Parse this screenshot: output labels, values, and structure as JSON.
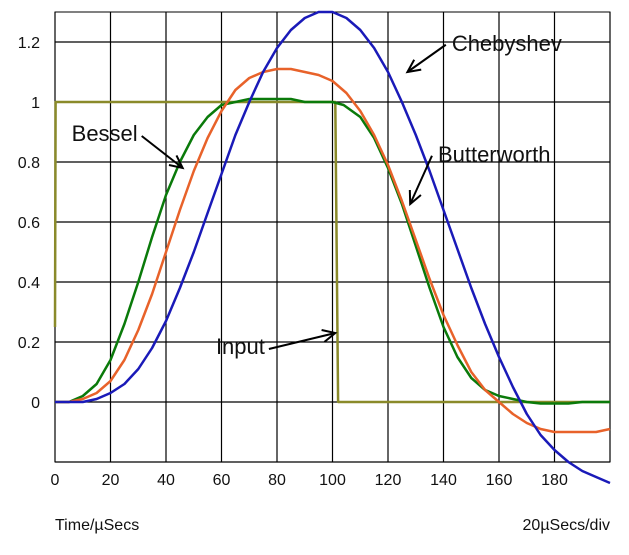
{
  "chart_data": {
    "type": "line",
    "title": "",
    "xlabel": "Time/µSecs",
    "ylabel": "",
    "scale_label": "20µSecs/div",
    "xlim": [
      0,
      200
    ],
    "ylim": [
      -0.2,
      1.3
    ],
    "grid": true,
    "legend": "none",
    "x_ticks": [
      0,
      20,
      40,
      60,
      80,
      100,
      120,
      140,
      160,
      180
    ],
    "y_ticks": [
      0,
      0.2,
      0.4,
      0.6,
      0.8,
      1,
      1.2
    ],
    "x_tick_labels": [
      "0",
      "20",
      "40",
      "60",
      "80",
      "100",
      "120",
      "140",
      "160",
      "180"
    ],
    "y_tick_labels": [
      "0",
      "0.2",
      "0.4",
      "0.6",
      "0.8",
      "1",
      "1.2"
    ],
    "series": [
      {
        "name": "Input",
        "color": "#8a8a2a",
        "x": [
          0,
          0.2,
          0.4,
          100,
          101,
          102,
          200
        ],
        "y": [
          0.25,
          1.0,
          1.0,
          1.0,
          1.0,
          0.0,
          0.0
        ]
      },
      {
        "name": "Bessel",
        "color": "#0a7a0a",
        "x": [
          0,
          5,
          10,
          15,
          20,
          25,
          30,
          35,
          40,
          45,
          50,
          55,
          60,
          65,
          70,
          75,
          80,
          85,
          90,
          95,
          100,
          104,
          110,
          115,
          120,
          125,
          130,
          135,
          140,
          145,
          150,
          155,
          160,
          165,
          170,
          175,
          180,
          185,
          190,
          195,
          200
        ],
        "y": [
          0,
          0,
          0.02,
          0.06,
          0.14,
          0.26,
          0.4,
          0.55,
          0.69,
          0.8,
          0.89,
          0.95,
          0.99,
          1.0,
          1.01,
          1.01,
          1.01,
          1.01,
          1.0,
          1.0,
          1.0,
          0.99,
          0.95,
          0.88,
          0.78,
          0.66,
          0.52,
          0.38,
          0.25,
          0.15,
          0.08,
          0.04,
          0.02,
          0.01,
          0.0,
          -0.005,
          -0.005,
          -0.005,
          0.0,
          0.0,
          0.0
        ]
      },
      {
        "name": "Butterworth",
        "color": "#e8622a",
        "x": [
          0,
          5,
          10,
          15,
          20,
          25,
          30,
          35,
          40,
          45,
          50,
          55,
          60,
          65,
          70,
          75,
          80,
          85,
          90,
          95,
          100,
          105,
          110,
          115,
          120,
          125,
          130,
          135,
          140,
          145,
          150,
          155,
          160,
          165,
          170,
          175,
          180,
          185,
          190,
          195,
          200
        ],
        "y": [
          0,
          0,
          0.01,
          0.03,
          0.07,
          0.14,
          0.24,
          0.36,
          0.5,
          0.64,
          0.77,
          0.88,
          0.97,
          1.04,
          1.08,
          1.1,
          1.11,
          1.11,
          1.1,
          1.09,
          1.07,
          1.03,
          0.97,
          0.89,
          0.79,
          0.67,
          0.54,
          0.41,
          0.29,
          0.19,
          0.1,
          0.04,
          0.0,
          -0.04,
          -0.07,
          -0.09,
          -0.1,
          -0.1,
          -0.1,
          -0.1,
          -0.09
        ]
      },
      {
        "name": "Chebyshev",
        "color": "#1a1ab8",
        "x": [
          0,
          5,
          10,
          15,
          20,
          25,
          30,
          35,
          40,
          45,
          50,
          55,
          60,
          65,
          70,
          75,
          80,
          85,
          90,
          95,
          100,
          105,
          110,
          115,
          120,
          125,
          130,
          135,
          140,
          145,
          150,
          155,
          160,
          165,
          170,
          175,
          180,
          185,
          190,
          195,
          200
        ],
        "y": [
          0,
          0,
          0,
          0.01,
          0.03,
          0.06,
          0.11,
          0.18,
          0.27,
          0.38,
          0.5,
          0.63,
          0.76,
          0.89,
          1.0,
          1.1,
          1.18,
          1.24,
          1.28,
          1.3,
          1.3,
          1.28,
          1.24,
          1.18,
          1.1,
          1.0,
          0.89,
          0.77,
          0.64,
          0.51,
          0.38,
          0.26,
          0.15,
          0.05,
          -0.04,
          -0.11,
          -0.16,
          -0.2,
          -0.23,
          -0.25,
          -0.27
        ]
      }
    ],
    "annotations": [
      {
        "text": "Chebyshev",
        "x": 143,
        "y": 1.17,
        "arrow_to": [
          127,
          1.1
        ]
      },
      {
        "text": "Butterworth",
        "x": 138,
        "y": 0.8,
        "arrow_to": [
          128,
          0.66
        ]
      },
      {
        "text": "Bessel",
        "x": 6,
        "y": 0.87,
        "arrow_to": [
          46,
          0.78
        ]
      },
      {
        "text": "Input",
        "x": 58,
        "y": 0.16,
        "arrow_to": [
          101,
          0.23
        ]
      }
    ]
  }
}
